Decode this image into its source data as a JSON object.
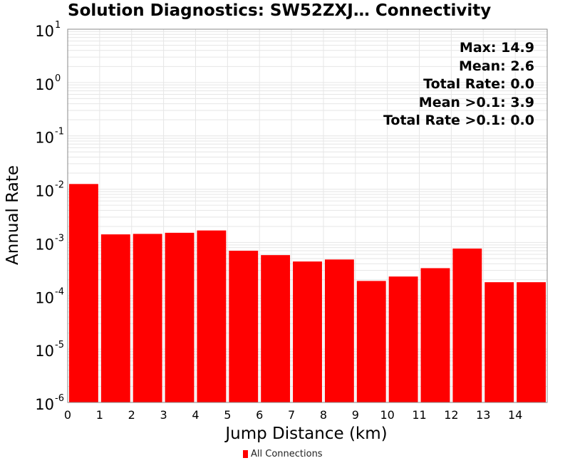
{
  "colors": {
    "bar": "#ff0000",
    "grid": "#e6e6e6",
    "axis": "#888888"
  },
  "chart_data": {
    "type": "bar",
    "title": "Solution Diagnostics: SW52ZXJ… Connectivity",
    "xlabel": "Jump Distance (km)",
    "ylabel": "Annual Rate",
    "y_scale": "log",
    "ylim": [
      1e-06,
      10
    ],
    "xlim": [
      0,
      15
    ],
    "grid": true,
    "legend_position": "bottom",
    "x_ticks": [
      "0",
      "1",
      "2",
      "3",
      "4",
      "5",
      "6",
      "7",
      "8",
      "9",
      "10",
      "11",
      "12",
      "13",
      "14"
    ],
    "y_ticks": [
      {
        "base": "10",
        "exp": "1",
        "value": 10
      },
      {
        "base": "10",
        "exp": "0",
        "value": 1
      },
      {
        "base": "10",
        "exp": "-1",
        "value": 0.1
      },
      {
        "base": "10",
        "exp": "-2",
        "value": 0.01
      },
      {
        "base": "10",
        "exp": "-3",
        "value": 0.001
      },
      {
        "base": "10",
        "exp": "-4",
        "value": 0.0001
      },
      {
        "base": "10",
        "exp": "-5",
        "value": 1e-05
      },
      {
        "base": "10",
        "exp": "-6",
        "value": 1e-06
      }
    ],
    "series": [
      {
        "name": "All Connections",
        "bins": [
          {
            "x0": 0,
            "x1": 1,
            "value": 0.0125
          },
          {
            "x0": 1,
            "x1": 2,
            "value": 0.00142
          },
          {
            "x0": 2,
            "x1": 3,
            "value": 0.00145
          },
          {
            "x0": 3,
            "x1": 4,
            "value": 0.00152
          },
          {
            "x0": 4,
            "x1": 5,
            "value": 0.00168
          },
          {
            "x0": 5,
            "x1": 6,
            "value": 0.0007
          },
          {
            "x0": 6,
            "x1": 7,
            "value": 0.00058
          },
          {
            "x0": 7,
            "x1": 8,
            "value": 0.00044
          },
          {
            "x0": 8,
            "x1": 9,
            "value": 0.00048
          },
          {
            "x0": 9,
            "x1": 10,
            "value": 0.00019
          },
          {
            "x0": 10,
            "x1": 11,
            "value": 0.00023
          },
          {
            "x0": 11,
            "x1": 12,
            "value": 0.00033
          },
          {
            "x0": 12,
            "x1": 13,
            "value": 0.00077
          },
          {
            "x0": 13,
            "x1": 14,
            "value": 0.00018
          },
          {
            "x0": 14,
            "x1": 15,
            "value": 0.00018
          }
        ]
      }
    ],
    "annotations": [
      "Max: 14.9",
      "Mean: 2.6",
      "Total Rate: 0.0",
      "Mean >0.1: 3.9",
      "Total Rate >0.1: 0.0"
    ]
  }
}
